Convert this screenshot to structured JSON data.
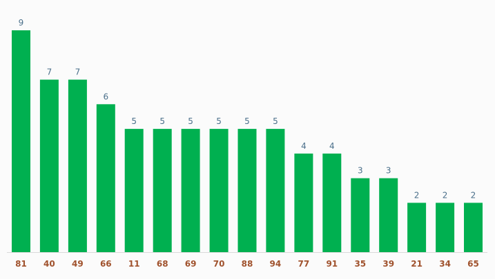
{
  "colors": {
    "bar": "#00b050",
    "value_label": "#4a6f8a",
    "tick_label": "#a0522d",
    "baseline": "#d9d9d9",
    "background": "#fbfbfb"
  },
  "chart_data": {
    "type": "bar",
    "categories": [
      "81",
      "40",
      "49",
      "66",
      "11",
      "68",
      "69",
      "70",
      "88",
      "94",
      "77",
      "91",
      "35",
      "39",
      "21",
      "34",
      "65"
    ],
    "values": [
      9,
      7,
      7,
      6,
      5,
      5,
      5,
      5,
      5,
      5,
      4,
      4,
      3,
      3,
      2,
      2,
      2
    ],
    "title": "",
    "xlabel": "",
    "ylabel": "",
    "ylim": [
      0,
      9
    ],
    "grid": false,
    "data_labels": true
  }
}
